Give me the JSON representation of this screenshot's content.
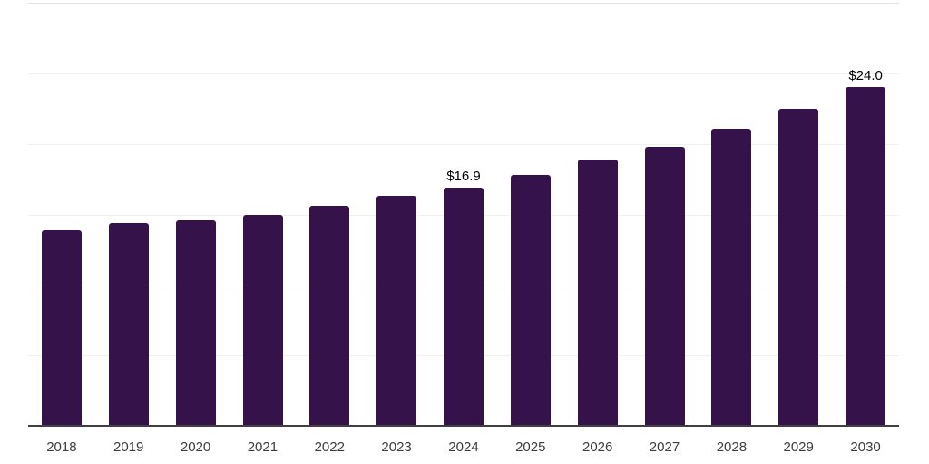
{
  "chart_data": {
    "type": "bar",
    "title": "",
    "xlabel": "",
    "ylabel": "",
    "categories": [
      "2018",
      "2019",
      "2020",
      "2021",
      "2022",
      "2023",
      "2024",
      "2025",
      "2026",
      "2027",
      "2028",
      "2029",
      "2030"
    ],
    "values": [
      13.9,
      14.4,
      14.6,
      15.0,
      15.6,
      16.3,
      16.9,
      17.8,
      18.9,
      19.8,
      21.1,
      22.5,
      24.0
    ],
    "point_labels": [
      "",
      "",
      "",
      "",
      "",
      "",
      "$16.9",
      "",
      "",
      "",
      "",
      "",
      "$24.0"
    ],
    "ylim": [
      0,
      30
    ],
    "gridline_step": 5,
    "grid": "horizontal",
    "legend": "none",
    "y_tick_labels_visible": false,
    "colors": {
      "bar": "#351249",
      "gridline": "#f0f0f0",
      "top_gridline": "#e3e3e3",
      "axis_line": "#404040",
      "tick_label": "#3d3d3d",
      "data_label": "#000000",
      "background": "#ffffff"
    }
  }
}
